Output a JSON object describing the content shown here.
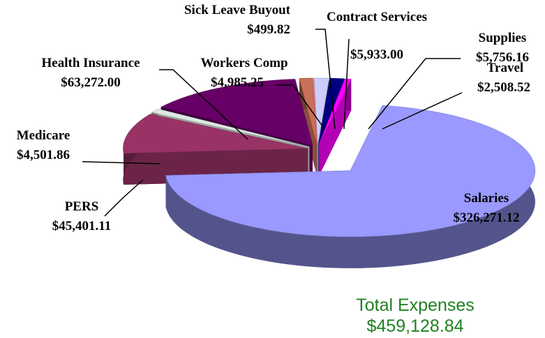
{
  "chart_data": {
    "type": "pie",
    "categories": [
      "Salaries",
      "PERS",
      "Medicare",
      "Health Insurance",
      "Workers Comp",
      "Sick Leave Buyout",
      "Contract Services",
      "Supplies",
      "Travel"
    ],
    "values": [
      326271.12,
      45401.11,
      4501.86,
      63272.0,
      4985.25,
      499.82,
      5933.0,
      5756.16,
      2508.52
    ],
    "value_labels": [
      "$326,271.12",
      "$45,401.11",
      "$4,501.86",
      "$63,272.00",
      "$4,985.25",
      "$499.82",
      "$5,933.00",
      "$5,756.16",
      "$2,508.52"
    ],
    "colors": [
      "#9999ff",
      "#993366",
      "#dde8e0",
      "#660066",
      "#c8705a",
      "#ff8080",
      "#ccccff",
      "#000080",
      "#ff00ff"
    ],
    "annotations": [
      "Total Expenses",
      "$459,128.84"
    ]
  }
}
